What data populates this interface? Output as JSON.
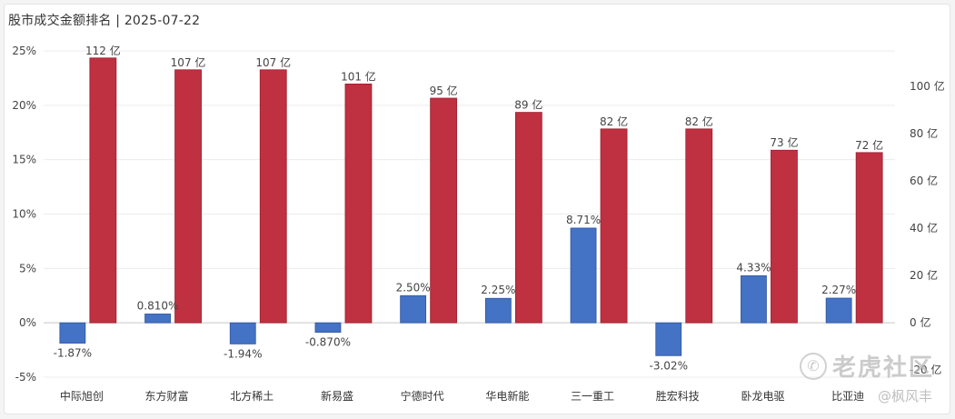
{
  "chart_data": {
    "type": "bar",
    "title": "股市成交金额排名 | 2025-07-22",
    "categories": [
      "中际旭创",
      "东方财富",
      "北方稀土",
      "新易盛",
      "宁德时代",
      "华电新能",
      "三一重工",
      "胜宏科技",
      "卧龙电驱",
      "比亚迪"
    ],
    "series": [
      {
        "axis": "left",
        "color": "#4472c4",
        "values": [
          -1.87,
          0.81,
          -1.94,
          -0.87,
          2.5,
          2.25,
          8.71,
          -3.02,
          4.33,
          2.27
        ],
        "labels": [
          "-1.87%",
          "0.810%",
          "-1.94%",
          "-0.870%",
          "2.50%",
          "2.25%",
          "8.71%",
          "-3.02%",
          "4.33%",
          "2.27%"
        ]
      },
      {
        "axis": "right",
        "color": "#bf3040",
        "values": [
          112,
          107,
          107,
          101,
          95,
          89,
          82,
          82,
          73,
          72
        ],
        "labels": [
          "112 亿",
          "107 亿",
          "107 亿",
          "101 亿",
          "95 亿",
          "89 亿",
          "82 亿",
          "82 亿",
          "73 亿",
          "72 亿"
        ]
      }
    ],
    "y_left": {
      "range": [
        -5,
        25
      ],
      "ticks": [
        25,
        20,
        15,
        10,
        5,
        0,
        -5
      ],
      "tick_labels": [
        "25%",
        "20%",
        "15%",
        "10%",
        "5%",
        "0%",
        "-5%"
      ]
    },
    "y_right": {
      "range": [
        -20,
        112
      ],
      "ticks": [
        100,
        80,
        60,
        40,
        20,
        0,
        -20
      ],
      "tick_labels": [
        "100 亿",
        "80 亿",
        "60 亿",
        "40 亿",
        "20 亿",
        "0 亿",
        "-20 亿"
      ]
    },
    "grid": true,
    "legend": "none"
  },
  "watermark": {
    "logo_glyph": "✆",
    "brand": "老虎社区",
    "user": "@枫风丰"
  }
}
